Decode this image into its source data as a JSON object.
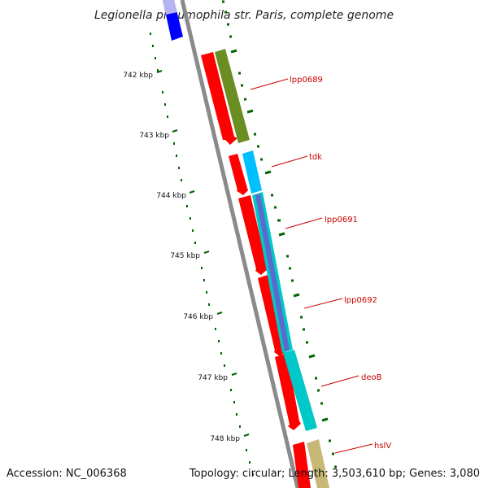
{
  "title": "Legionella pneumophila str. Paris, complete genome",
  "footer": {
    "accession": "Accession: NC_006368",
    "summary": "Topology: circular; Length: 3,503,610 bp; Genes: 3,080"
  },
  "ruler": {
    "ticks": [
      "742 kbp",
      "743 kbp",
      "744 kbp",
      "745 kbp",
      "746 kbp",
      "747 kbp",
      "748 kbp"
    ]
  },
  "genes": [
    {
      "label": "lpp0689"
    },
    {
      "label": "tdk"
    },
    {
      "label": "lpp0691"
    },
    {
      "label": "lpp0692"
    },
    {
      "label": "deoB"
    },
    {
      "label": "hslV"
    }
  ],
  "colors": {
    "backbone": "#8a8a8a",
    "cds": "#ff0000",
    "olive": "#6b8e23",
    "cyan": "#00bfff",
    "teal": "#00c8c8",
    "purple": "#6a5acd",
    "tan": "#c8b878",
    "blue": "#0000ff",
    "tick": "#006400",
    "label": "#cc0000"
  }
}
